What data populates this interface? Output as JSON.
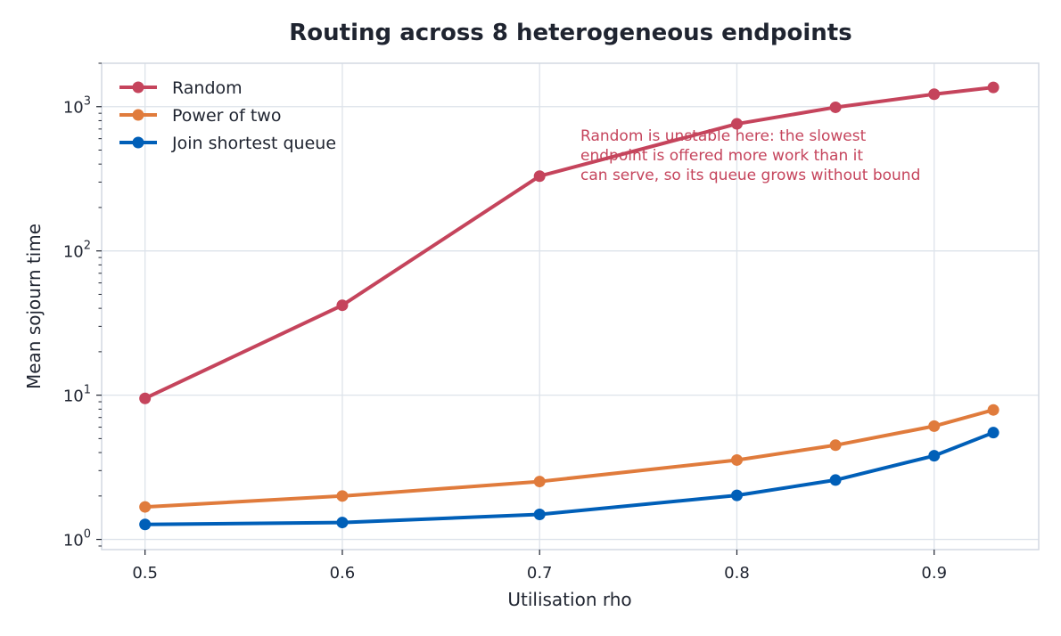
{
  "chart_data": {
    "type": "line",
    "title": "Routing across 8 heterogeneous endpoints",
    "xlabel": "Utilisation rho",
    "ylabel": "Mean sojourn time",
    "yscale": "log",
    "x": [
      0.5,
      0.6,
      0.7,
      0.8,
      0.85,
      0.9,
      0.93
    ],
    "xticks": [
      "0.5",
      "0.6",
      "0.7",
      "0.8",
      "0.9"
    ],
    "xlim": [
      0.478,
      0.953
    ],
    "ylim": [
      0.85,
      2000
    ],
    "yticks": [
      {
        "base": "10",
        "exp": "0"
      },
      {
        "base": "10",
        "exp": "1"
      },
      {
        "base": "10",
        "exp": "2"
      },
      {
        "base": "10",
        "exp": "3"
      }
    ],
    "grid": true,
    "legend_position": "top-left",
    "series": [
      {
        "name": "Random",
        "color": "#c5445c",
        "values": [
          9.5,
          42,
          330,
          760,
          990,
          1220,
          1360
        ]
      },
      {
        "name": "Power of two",
        "color": "#e07b3c",
        "values": [
          1.68,
          2.0,
          2.52,
          3.55,
          4.5,
          6.1,
          7.9
        ]
      },
      {
        "name": "Join shortest queue",
        "color": "#005fb8",
        "values": [
          1.27,
          1.31,
          1.49,
          2.02,
          2.58,
          3.8,
          5.5
        ]
      }
    ],
    "annotation": {
      "lines": [
        "Random is unstable here: the slowest",
        "endpoint is offered more work than it",
        "can serve, so its queue grows without bound"
      ],
      "color": "#c5445c"
    }
  }
}
